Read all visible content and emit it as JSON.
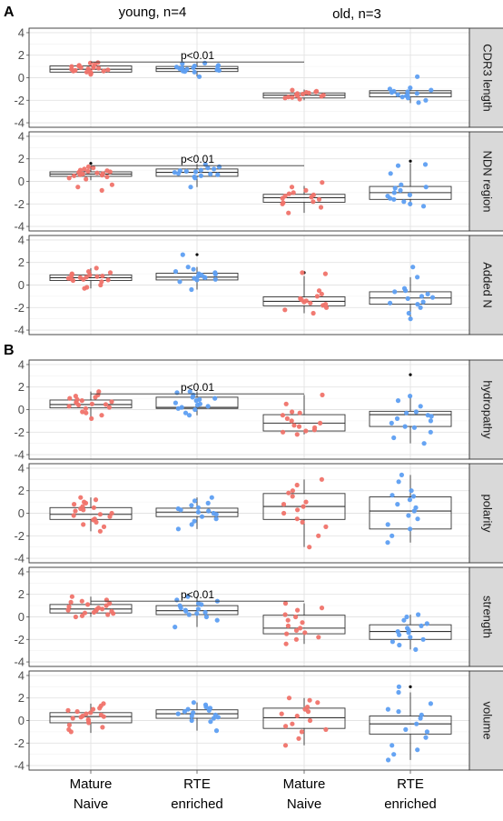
{
  "chart_data": {
    "type": "box-strip",
    "panel_letters": [
      "A",
      "B"
    ],
    "group_titles": [
      "young, n=4",
      "old, n=3"
    ],
    "categories": [
      "Mature\nNaive",
      "RTE\nenriched",
      "Mature\nNaive",
      "RTE\nenriched"
    ],
    "point_colors": [
      "#f0736a",
      "#5e9ff2",
      "#f0736a",
      "#5e9ff2"
    ],
    "ylim": [
      -4.4,
      4.4
    ],
    "yticks": [
      4,
      2,
      0,
      -2,
      -4
    ],
    "grid": true,
    "facets": [
      {
        "label": "CDR3 length",
        "section": "A",
        "annotation": {
          "text": "p<0.01",
          "from": 0,
          "to": 2,
          "y": 1.4
        },
        "boxes": [
          {
            "q1": 0.5,
            "median": 0.75,
            "q3": 1.05,
            "lo": 0.3,
            "hi": 1.35
          },
          {
            "q1": 0.55,
            "median": 0.8,
            "q3": 1.0,
            "lo": 0.1,
            "hi": 1.35
          },
          {
            "q1": -1.8,
            "median": -1.55,
            "q3": -1.35,
            "lo": -2.0,
            "hi": -1.05
          },
          {
            "q1": -1.7,
            "median": -1.35,
            "q3": -1.15,
            "lo": -2.25,
            "hi": -0.9
          }
        ],
        "points": [
          [
            1.3,
            0.9,
            0.6,
            1.1,
            0.8,
            0.4,
            1.0,
            0.7,
            1.2,
            0.5,
            0.9,
            0.6,
            1.35,
            0.75,
            0.3,
            1.05,
            0.85,
            0.65,
            0.95,
            0.55
          ],
          [
            1.25,
            0.95,
            0.7,
            1.1,
            0.8,
            0.5,
            1.0,
            0.6,
            0.9,
            0.1,
            1.3,
            0.75,
            0.85,
            0.65,
            1.05,
            0.55
          ],
          [
            -1.3,
            -1.5,
            -1.7,
            -1.2,
            -1.6,
            -1.4,
            -1.8,
            -1.55,
            -1.1,
            -1.65,
            -1.45,
            -1.75,
            -1.35,
            -1.9,
            -1.25
          ],
          [
            0.1,
            -1.2,
            -1.5,
            -1.8,
            -1.3,
            -1.0,
            -1.6,
            -2.2,
            -1.4,
            -1.1,
            -1.7,
            -1.25,
            -0.9,
            -1.55,
            -2.0
          ]
        ]
      },
      {
        "label": "NDN region",
        "section": "A",
        "annotation": {
          "text": "p<0.01",
          "from": 0,
          "to": 2,
          "y": 1.4
        },
        "boxes": [
          {
            "q1": 0.45,
            "median": 0.65,
            "q3": 0.85,
            "lo": 0.1,
            "hi": 1.4,
            "outliers": [
              1.6
            ]
          },
          {
            "q1": 0.45,
            "median": 0.8,
            "q3": 1.1,
            "lo": -0.5,
            "hi": 1.55
          },
          {
            "q1": -1.85,
            "median": -1.45,
            "q3": -1.15,
            "lo": -2.8,
            "hi": -0.4
          },
          {
            "q1": -1.6,
            "median": -1.0,
            "q3": -0.45,
            "lo": -2.2,
            "hi": 1.6,
            "outliers": [
              1.8
            ]
          }
        ],
        "points": [
          [
            1.3,
            0.9,
            0.6,
            0.8,
            -0.8,
            0.5,
            1.0,
            0.7,
            0.4,
            -0.3,
            0.85,
            0.95,
            0.55,
            0.75,
            1.2,
            0.3,
            0.65,
            1.1,
            -0.5,
            0.2
          ],
          [
            1.5,
            1.2,
            0.9,
            0.6,
            0.8,
            -0.5,
            1.0,
            0.4,
            0.7,
            1.3,
            0.3,
            1.1,
            0.5,
            0.85,
            0.95,
            0.65
          ],
          [
            -0.1,
            -1.0,
            -1.5,
            -2.8,
            -1.2,
            -1.8,
            -1.4,
            -2.3,
            -0.5,
            -1.6,
            -1.1,
            -1.9,
            -1.3,
            -2.0,
            -0.8
          ],
          [
            1.5,
            -0.5,
            -1.0,
            -2.0,
            -1.5,
            -0.8,
            -1.2,
            0.7,
            -1.8,
            1.4,
            -0.3,
            -2.2,
            -1.6,
            -0.6,
            -1.3
          ]
        ]
      },
      {
        "label": "Added N",
        "section": "A",
        "boxes": [
          {
            "q1": 0.4,
            "median": 0.65,
            "q3": 0.9,
            "lo": -0.3,
            "hi": 1.5
          },
          {
            "q1": 0.45,
            "median": 0.7,
            "q3": 1.05,
            "lo": -0.4,
            "hi": 1.6,
            "outliers": [
              2.7
            ]
          },
          {
            "q1": -1.85,
            "median": -1.45,
            "q3": -1.05,
            "lo": -2.5,
            "hi": 0.8,
            "outliers": [
              1.1
            ]
          },
          {
            "q1": -1.7,
            "median": -1.15,
            "q3": -0.6,
            "lo": -3.0,
            "hi": 0.7
          }
        ],
        "points": [
          [
            1.5,
            1.0,
            0.7,
            0.4,
            0.9,
            -0.2,
            0.6,
            0.8,
            1.2,
            0.3,
            0.5,
            1.1,
            0.0,
            0.75,
            0.65,
            -0.3,
            0.85,
            0.45,
            0.95,
            0.55
          ],
          [
            2.7,
            1.6,
            1.2,
            0.9,
            0.6,
            -0.4,
            1.0,
            0.5,
            0.8,
            1.4,
            0.3,
            1.1,
            0.7,
            0.45,
            0.95,
            0.65
          ],
          [
            1.1,
            1.0,
            -0.8,
            -1.2,
            -1.5,
            -2.5,
            -1.0,
            -1.8,
            -1.4,
            -2.0,
            -1.6,
            -0.5,
            -1.3,
            -2.2,
            -1.7
          ],
          [
            1.6,
            0.7,
            -0.5,
            -1.0,
            -1.5,
            -3.0,
            -1.2,
            -0.8,
            -2.0,
            -1.6,
            -0.3,
            -2.5,
            -1.1,
            -1.7,
            -0.6
          ]
        ]
      },
      {
        "label": "hydropathy",
        "section": "B",
        "annotation": {
          "text": "p<0.01",
          "from": 0,
          "to": 2,
          "y": 1.4
        },
        "boxes": [
          {
            "q1": 0.15,
            "median": 0.45,
            "q3": 0.85,
            "lo": -0.8,
            "hi": 1.6
          },
          {
            "q1": 0.1,
            "median": 0.2,
            "q3": 1.1,
            "lo": -0.5,
            "hi": 1.6
          },
          {
            "q1": -1.9,
            "median": -1.2,
            "q3": -0.45,
            "lo": -2.2,
            "hi": 1.3
          },
          {
            "q1": -1.5,
            "median": -0.45,
            "q3": -0.15,
            "lo": -3.0,
            "hi": 1.2,
            "outliers": [
              3.1
            ]
          }
        ],
        "points": [
          [
            1.6,
            1.2,
            0.9,
            0.5,
            -0.2,
            0.3,
            0.7,
            -0.8,
            1.0,
            0.1,
            0.6,
            1.3,
            0.4,
            -0.5,
            0.8,
            0.2,
            1.1,
            -0.3,
            0.45,
            0.65
          ],
          [
            1.6,
            1.3,
            1.0,
            0.5,
            0.1,
            0.2,
            0.8,
            -0.3,
            1.1,
            0.4,
            -0.5,
            0.6,
            1.5,
            0.3,
            0.0,
            0.9
          ],
          [
            1.3,
            0.5,
            -0.3,
            -1.0,
            -1.5,
            -2.0,
            -0.8,
            -1.8,
            -1.2,
            -0.5,
            -1.9,
            -1.4,
            -2.2,
            -0.2,
            -1.6
          ],
          [
            1.2,
            0.8,
            -0.2,
            -0.5,
            -1.0,
            -1.5,
            -2.0,
            -3.0,
            -0.3,
            -1.2,
            -0.8,
            -2.5,
            0.3,
            -1.6,
            -0.6
          ]
        ]
      },
      {
        "label": "polarity",
        "section": "B",
        "boxes": [
          {
            "q1": -0.55,
            "median": -0.1,
            "q3": 0.5,
            "lo": -1.6,
            "hi": 1.4
          },
          {
            "q1": -0.3,
            "median": 0.1,
            "q3": 0.45,
            "lo": -1.4,
            "hi": 1.4
          },
          {
            "q1": -0.55,
            "median": 0.6,
            "q3": 1.75,
            "lo": -3.0,
            "hi": 3.0
          },
          {
            "q1": -1.4,
            "median": 0.2,
            "q3": 1.45,
            "lo": -2.6,
            "hi": 3.4
          }
        ],
        "points": [
          [
            1.4,
            1.0,
            0.6,
            0.2,
            -0.3,
            -0.8,
            -1.2,
            -1.6,
            0.4,
            -0.5,
            0.8,
            -0.1,
            0.0,
            1.2,
            -1.0,
            0.3,
            -0.6,
            0.5,
            -0.2,
            0.9
          ],
          [
            1.4,
            0.9,
            0.5,
            0.1,
            -0.3,
            -1.0,
            -1.4,
            0.3,
            0.7,
            -0.5,
            0.2,
            -0.1,
            1.1,
            0.0,
            -0.7,
            0.4
          ],
          [
            3.0,
            2.5,
            2.0,
            1.5,
            0.8,
            0.3,
            -0.5,
            -1.2,
            -2.0,
            -3.0,
            1.0,
            0.0,
            -0.8,
            1.8,
            0.6
          ],
          [
            3.4,
            2.8,
            2.0,
            1.5,
            0.8,
            0.2,
            -0.5,
            -1.4,
            -2.0,
            -2.6,
            1.2,
            -0.2,
            -1.0,
            0.5,
            1.6
          ]
        ]
      },
      {
        "label": "strength",
        "section": "B",
        "annotation": {
          "text": "p<0.01",
          "from": 0,
          "to": 2,
          "y": 1.4
        },
        "boxes": [
          {
            "q1": 0.35,
            "median": 0.7,
            "q3": 1.1,
            "lo": 0.0,
            "hi": 1.8
          },
          {
            "q1": 0.2,
            "median": 0.55,
            "q3": 1.0,
            "lo": -0.9,
            "hi": 1.8
          },
          {
            "q1": -1.5,
            "median": -1.0,
            "q3": 0.15,
            "lo": -2.4,
            "hi": 1.2
          },
          {
            "q1": -2.0,
            "median": -1.3,
            "q3": -0.7,
            "lo": -2.9,
            "hi": 0.2
          }
        ],
        "points": [
          [
            1.8,
            1.4,
            1.1,
            0.8,
            0.5,
            0.2,
            0.0,
            0.6,
            1.0,
            0.3,
            1.5,
            0.7,
            0.4,
            1.2,
            0.9,
            0.1,
            0.55,
            1.3,
            0.65,
            0.35
          ],
          [
            1.8,
            1.4,
            1.1,
            0.8,
            0.4,
            0.0,
            -0.9,
            0.6,
            1.0,
            0.2,
            1.5,
            0.5,
            0.3,
            1.2,
            0.7,
            -0.3
          ],
          [
            1.2,
            0.6,
            0.2,
            -0.3,
            -0.8,
            -1.2,
            -1.5,
            -2.0,
            -2.4,
            -1.0,
            0.0,
            -1.8,
            -0.5,
            -1.4,
            0.8
          ],
          [
            0.2,
            -0.3,
            -0.8,
            -1.2,
            -1.6,
            -2.0,
            -2.5,
            -2.9,
            -1.0,
            -1.4,
            -0.6,
            -2.2,
            -1.8,
            0.0,
            -1.3
          ]
        ]
      },
      {
        "label": "volume",
        "section": "B",
        "boxes": [
          {
            "q1": -0.2,
            "median": 0.35,
            "q3": 0.7,
            "lo": -1.1,
            "hi": 1.5
          },
          {
            "q1": 0.2,
            "median": 0.6,
            "q3": 0.95,
            "lo": -0.9,
            "hi": 1.6
          },
          {
            "q1": -0.7,
            "median": 0.25,
            "q3": 1.1,
            "lo": -2.2,
            "hi": 2.0
          },
          {
            "q1": -1.2,
            "median": -0.3,
            "q3": 0.4,
            "lo": -3.5,
            "hi": 2.5,
            "outliers": [
              3.0
            ]
          }
        ],
        "points": [
          [
            1.5,
            1.1,
            0.8,
            0.5,
            0.2,
            -0.2,
            -0.6,
            -1.0,
            0.6,
            0.3,
            0.9,
            0.0,
            1.3,
            0.4,
            -0.4,
            0.7,
            0.1,
            1.0,
            -0.8,
            0.35
          ],
          [
            1.6,
            1.2,
            0.9,
            0.6,
            0.3,
            -0.1,
            -0.9,
            0.8,
            1.0,
            0.4,
            0.5,
            1.4,
            0.2,
            0.7,
            0.0,
            1.1
          ],
          [
            2.0,
            1.6,
            1.2,
            0.8,
            0.4,
            0.0,
            -0.5,
            -1.0,
            -1.6,
            -2.2,
            1.0,
            -0.3,
            0.6,
            -0.8,
            1.8
          ],
          [
            3.0,
            2.5,
            1.5,
            0.8,
            0.2,
            -0.3,
            -0.8,
            -1.5,
            -2.2,
            -3.0,
            -3.5,
            0.5,
            -1.0,
            -2.6,
            1.0
          ]
        ]
      }
    ]
  }
}
